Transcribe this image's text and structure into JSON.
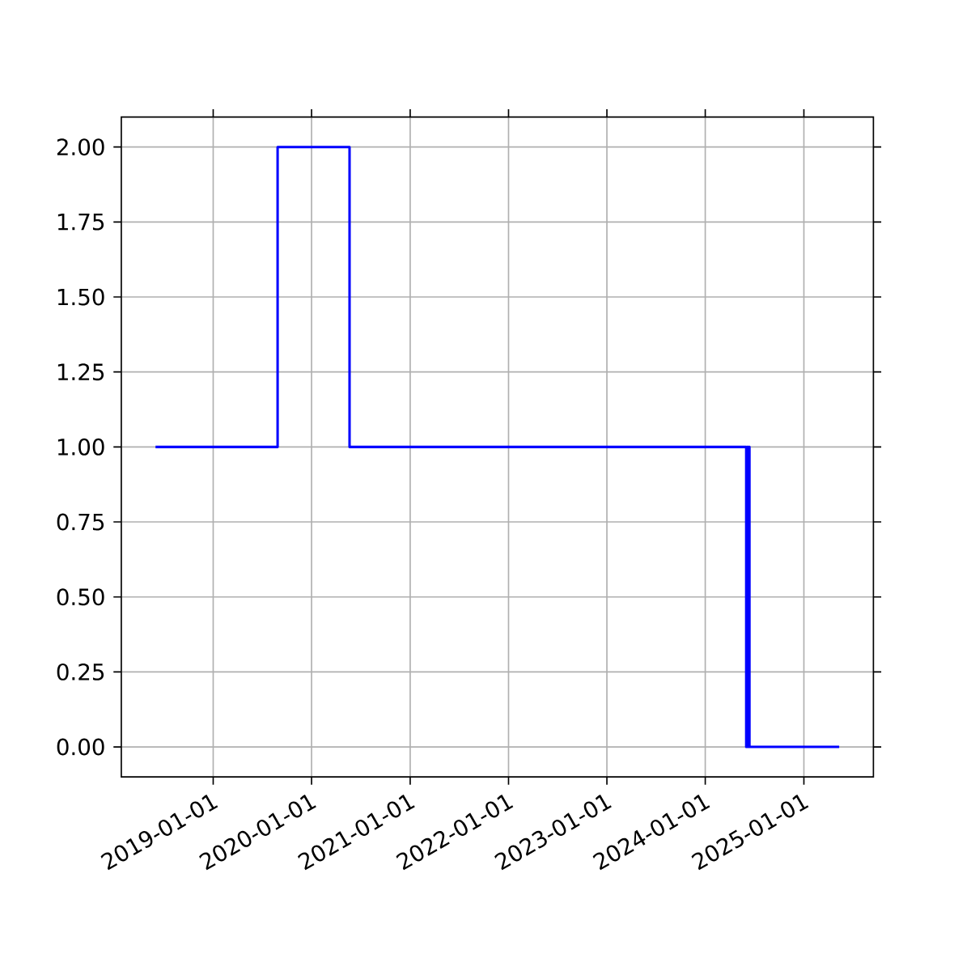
{
  "chart_data": {
    "type": "step",
    "x": [
      "2018-06-01",
      "2019-08-28",
      "2020-05-21",
      "2024-06-01",
      "2024-06-04",
      "2024-06-07",
      "2024-06-10",
      "2024-06-13",
      "2025-05-12"
    ],
    "values": [
      1,
      2,
      1,
      0,
      1,
      0,
      1,
      0,
      0
    ],
    "color": "#0000ff",
    "xlim": [
      "2018-01-25",
      "2025-09-16"
    ],
    "xticks": [
      "2019-01-01",
      "2020-01-01",
      "2021-01-01",
      "2022-01-01",
      "2023-01-01",
      "2024-01-01",
      "2025-01-01"
    ],
    "ylim": [
      -0.1,
      2.1
    ],
    "yticks": [
      {
        "value": 0,
        "label": "0.00"
      },
      {
        "value": 0.25,
        "label": "0.25"
      },
      {
        "value": 0.5,
        "label": "0.50"
      },
      {
        "value": 0.75,
        "label": "0.75"
      },
      {
        "value": 1,
        "label": "1.00"
      },
      {
        "value": 1.25,
        "label": "1.25"
      },
      {
        "value": 1.5,
        "label": "1.50"
      },
      {
        "value": 1.75,
        "label": "1.75"
      },
      {
        "value": 2,
        "label": "2.00"
      }
    ],
    "grid": true
  }
}
